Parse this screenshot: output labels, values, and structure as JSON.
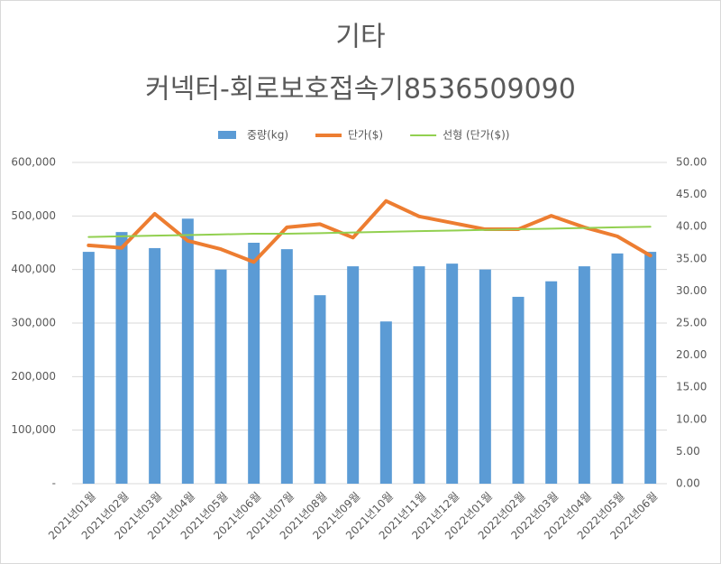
{
  "chart_data": {
    "type": "combo",
    "title": "기타",
    "subtitle": "커넥터-회로보호접속기8536509090",
    "categories": [
      "2021년01월",
      "2021년02월",
      "2021년03월",
      "2021년04월",
      "2021년05월",
      "2021년06월",
      "2021년07월",
      "2021년08월",
      "2021년09월",
      "2021년10월",
      "2021년11월",
      "2021년12월",
      "2022년01월",
      "2022년02월",
      "2022년03월",
      "2022년04월",
      "2022년05월",
      "2022년06월"
    ],
    "series": [
      {
        "name": "중량(kg)",
        "type": "bar",
        "color": "#5b9bd5",
        "axis": "y",
        "values": [
          433000,
          470000,
          440000,
          495000,
          400000,
          450000,
          438000,
          352000,
          406000,
          303000,
          406000,
          411000,
          400000,
          349000,
          378000,
          406000,
          430000,
          433000
        ]
      },
      {
        "name": "단가($)",
        "type": "line",
        "color": "#ed7d31",
        "axis": "y2",
        "width": 4,
        "values": [
          37.1,
          36.7,
          42.0,
          37.8,
          36.5,
          34.5,
          39.9,
          40.4,
          38.3,
          44.0,
          41.6,
          40.6,
          39.6,
          39.6,
          41.7,
          39.9,
          38.5,
          35.5
        ]
      },
      {
        "name": "선형 (단가($))",
        "type": "line",
        "color": "#92d050",
        "axis": "y2",
        "width": 2,
        "values": [
          38.4,
          38.5,
          38.6,
          38.7,
          38.8,
          38.9,
          38.9,
          39.0,
          39.1,
          39.2,
          39.3,
          39.4,
          39.5,
          39.6,
          39.7,
          39.8,
          39.9,
          40.0
        ]
      }
    ],
    "ylim": [
      0,
      600000
    ],
    "yticks": [
      {
        "value": 0,
        "label": "-"
      },
      {
        "value": 100000,
        "label": "100,000"
      },
      {
        "value": 200000,
        "label": "200,000"
      },
      {
        "value": 300000,
        "label": "300,000"
      },
      {
        "value": 400000,
        "label": "400,000"
      },
      {
        "value": 500000,
        "label": "500,000"
      },
      {
        "value": 600000,
        "label": "600,000"
      }
    ],
    "y2lim": [
      0,
      50
    ],
    "y2ticks": [
      {
        "value": 0,
        "label": "0.00"
      },
      {
        "value": 5,
        "label": "5.00"
      },
      {
        "value": 10,
        "label": "10.00"
      },
      {
        "value": 15,
        "label": "15.00"
      },
      {
        "value": 20,
        "label": "20.00"
      },
      {
        "value": 25,
        "label": "25.00"
      },
      {
        "value": 30,
        "label": "30.00"
      },
      {
        "value": 35,
        "label": "35.00"
      },
      {
        "value": 40,
        "label": "40.00"
      },
      {
        "value": 45,
        "label": "45.00"
      },
      {
        "value": 50,
        "label": "50.00"
      }
    ],
    "grid": true,
    "legend": "top"
  }
}
